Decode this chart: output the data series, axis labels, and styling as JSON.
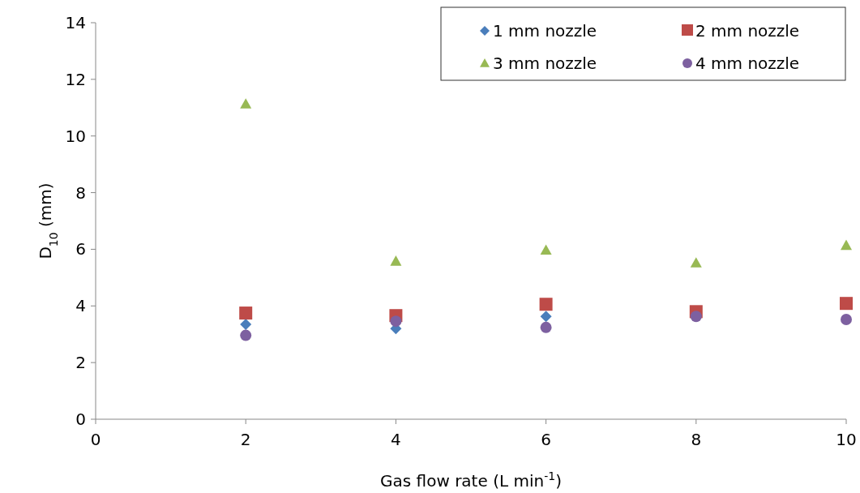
{
  "chart_data": {
    "type": "scatter",
    "xlabel": "Gas flow rate (L min$^{-1}$)",
    "ylabel": "D$_{10}$ (mm)",
    "x": [
      2,
      4,
      6,
      8,
      10
    ],
    "xlim": [
      0,
      10
    ],
    "xticks": [
      0,
      2,
      4,
      6,
      8,
      10
    ],
    "ylim": [
      0,
      14
    ],
    "yticks": [
      0,
      2,
      4,
      6,
      8,
      10,
      12,
      14
    ],
    "grid": false,
    "legend": "top right",
    "series": [
      {
        "name": "1 mm nozzle",
        "color": "#4a7ebb",
        "marker": "diamond",
        "values": [
          3.35,
          3.2,
          3.63,
          null,
          null
        ]
      },
      {
        "name": "2 mm nozzle",
        "color": "#be4b48",
        "marker": "square",
        "values": [
          3.72,
          3.63,
          4.03,
          3.77,
          4.06
        ]
      },
      {
        "name": "3 mm nozzle",
        "color": "#98b954",
        "marker": "triangle",
        "values": [
          11.13,
          5.58,
          5.97,
          5.52,
          6.14
        ]
      },
      {
        "name": "4 mm nozzle",
        "color": "#7d60a0",
        "marker": "circle",
        "values": [
          2.96,
          3.46,
          3.24,
          3.63,
          3.52
        ]
      }
    ]
  }
}
